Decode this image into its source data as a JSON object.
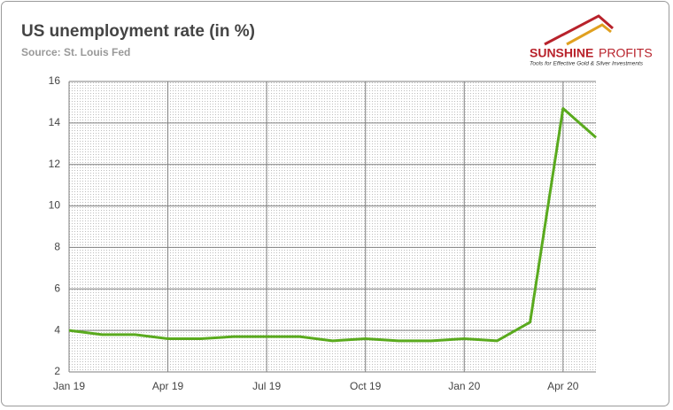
{
  "chart_data": {
    "type": "line",
    "title": "US unemployment rate (in %)",
    "subtitle": "Source: St. Louis Fed",
    "categories": [
      "Jan 19",
      null,
      null,
      "Apr 19",
      null,
      null,
      "Jul 19",
      null,
      null,
      "Oct 19",
      null,
      null,
      "Jan 20",
      null,
      null,
      "Apr 20",
      null
    ],
    "series": [
      {
        "name": "Unemployment rate",
        "color": "#5aaa1e",
        "values": [
          4.0,
          3.8,
          3.8,
          3.6,
          3.6,
          3.7,
          3.7,
          3.7,
          3.5,
          3.6,
          3.5,
          3.5,
          3.6,
          3.5,
          4.4,
          14.7,
          13.3
        ]
      }
    ],
    "ylim": [
      2,
      16
    ],
    "yticks": [
      2,
      4,
      6,
      8,
      10,
      12,
      14,
      16
    ],
    "grid": true
  },
  "logo": {
    "brand": "SUNSHINE",
    "brand2": "PROFITS",
    "tagline": "Tools for Effective Gold & Silver Investments"
  }
}
